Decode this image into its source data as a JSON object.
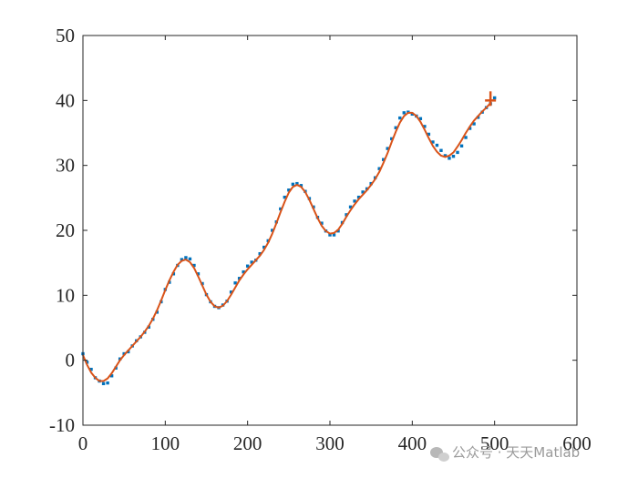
{
  "chart_data": {
    "type": "scatter",
    "title": "",
    "xlabel": "",
    "ylabel": "",
    "xlim": [
      0,
      600
    ],
    "ylim": [
      -10,
      50
    ],
    "x_ticks": [
      0,
      100,
      200,
      300,
      400,
      500,
      600
    ],
    "y_ticks": [
      -10,
      0,
      10,
      20,
      30,
      40,
      50
    ],
    "grid": false,
    "legend": "none",
    "series": [
      {
        "kind": "points",
        "color": "#0072BD",
        "x": [
          0,
          5,
          10,
          15,
          20,
          25,
          30,
          35,
          40,
          45,
          50,
          55,
          60,
          65,
          70,
          75,
          80,
          85,
          90,
          95,
          100,
          105,
          110,
          115,
          120,
          125,
          130,
          135,
          140,
          145,
          150,
          155,
          160,
          165,
          170,
          175,
          180,
          185,
          190,
          195,
          200,
          205,
          210,
          215,
          220,
          225,
          230,
          235,
          240,
          245,
          250,
          255,
          260,
          265,
          270,
          275,
          280,
          285,
          290,
          295,
          300,
          305,
          310,
          315,
          320,
          325,
          330,
          335,
          340,
          345,
          350,
          355,
          360,
          365,
          370,
          375,
          380,
          385,
          390,
          395,
          400,
          405,
          410,
          415,
          420,
          425,
          430,
          435,
          440,
          445,
          450,
          455,
          460,
          465,
          470,
          475,
          480,
          485,
          490,
          495,
          500
        ],
        "y": [
          1.0,
          -0.3,
          -1.4,
          -2.7,
          -3.2,
          -3.6,
          -3.5,
          -2.4,
          -1.2,
          0.2,
          1.0,
          1.3,
          2.2,
          3.0,
          3.6,
          4.3,
          5.1,
          6.3,
          7.4,
          9.0,
          10.9,
          12.0,
          13.3,
          14.6,
          15.5,
          15.8,
          15.6,
          14.6,
          13.3,
          11.8,
          10.1,
          9.0,
          8.3,
          8.1,
          8.5,
          9.1,
          10.5,
          11.9,
          12.6,
          13.6,
          14.5,
          15.1,
          15.4,
          16.4,
          17.4,
          18.4,
          20.0,
          21.3,
          23.3,
          25.1,
          26.2,
          27.1,
          27.2,
          26.9,
          26.0,
          24.9,
          23.6,
          22.0,
          21.1,
          19.9,
          19.3,
          19.3,
          19.9,
          21.2,
          22.4,
          23.6,
          24.5,
          25.1,
          25.9,
          26.4,
          27.2,
          28.1,
          29.5,
          30.9,
          32.6,
          34.1,
          35.8,
          37.3,
          38.1,
          38.2,
          37.9,
          37.6,
          37.2,
          36.0,
          34.8,
          33.6,
          33.1,
          32.3,
          31.5,
          31.1,
          31.4,
          32.0,
          33.0,
          34.3,
          35.7,
          36.4,
          37.4,
          38.2,
          38.9,
          39.5,
          40.4
        ]
      },
      {
        "kind": "line",
        "color": "#D95319",
        "x": [
          0,
          5,
          10,
          15,
          20,
          25,
          30,
          35,
          40,
          45,
          50,
          55,
          60,
          65,
          70,
          75,
          80,
          85,
          90,
          95,
          100,
          105,
          110,
          115,
          120,
          125,
          130,
          135,
          140,
          145,
          150,
          155,
          160,
          165,
          170,
          175,
          180,
          185,
          190,
          195,
          200,
          205,
          210,
          215,
          220,
          225,
          230,
          235,
          240,
          245,
          250,
          255,
          260,
          265,
          270,
          275,
          280,
          285,
          290,
          295,
          300,
          305,
          310,
          315,
          320,
          325,
          330,
          335,
          340,
          345,
          350,
          355,
          360,
          365,
          370,
          375,
          380,
          385,
          390,
          395,
          400,
          405,
          410,
          415,
          420,
          425,
          430,
          435,
          440,
          445,
          450,
          455,
          460,
          465,
          470,
          475,
          480,
          485,
          490,
          495
        ],
        "y": [
          0.8,
          -0.7,
          -1.9,
          -2.7,
          -3.2,
          -3.2,
          -2.8,
          -2.0,
          -1.0,
          0.0,
          0.8,
          1.5,
          2.2,
          2.9,
          3.6,
          4.4,
          5.3,
          6.4,
          7.7,
          9.2,
          10.8,
          12.3,
          13.6,
          14.7,
          15.3,
          15.5,
          15.1,
          14.2,
          12.9,
          11.5,
          10.1,
          9.0,
          8.3,
          8.1,
          8.4,
          9.1,
          10.1,
          11.2,
          12.3,
          13.2,
          14.0,
          14.7,
          15.4,
          16.1,
          17.0,
          18.1,
          19.5,
          21.1,
          22.8,
          24.4,
          25.8,
          26.7,
          27.0,
          26.7,
          25.9,
          24.7,
          23.3,
          21.9,
          20.7,
          19.9,
          19.5,
          19.6,
          20.1,
          21.0,
          22.1,
          23.1,
          24.0,
          24.8,
          25.5,
          26.2,
          27.0,
          27.9,
          29.0,
          30.4,
          31.9,
          33.6,
          35.2,
          36.6,
          37.6,
          38.1,
          38.1,
          37.6,
          36.7,
          35.5,
          34.2,
          33.0,
          32.1,
          31.5,
          31.3,
          31.5,
          32.0,
          32.9,
          33.9,
          35.0,
          36.0,
          36.9,
          37.6,
          38.3,
          38.9,
          39.6
        ]
      }
    ],
    "annotations": [
      {
        "kind": "marker",
        "shape": "plus",
        "x": 495,
        "y": 40.0,
        "color": "#D95319"
      }
    ]
  },
  "watermark": {
    "icon": "wechat-icon",
    "text": "公众号 · 天天Matlab"
  }
}
